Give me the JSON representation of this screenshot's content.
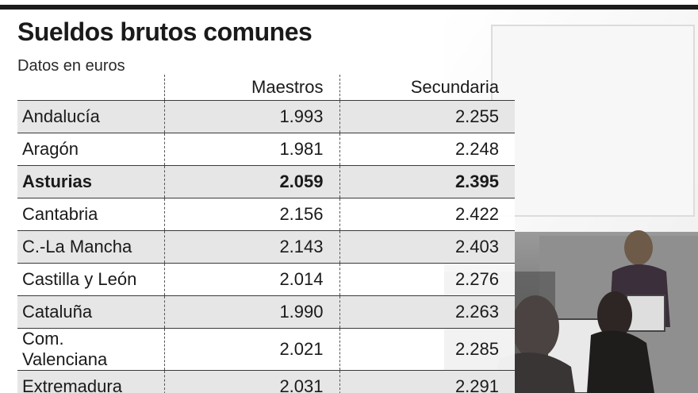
{
  "chart_data": {
    "type": "table",
    "title": "Sueldos brutos comunes",
    "subtitle": "Datos en euros",
    "columns": [
      "",
      "Maestros",
      "Secundaria"
    ],
    "highlight_row": "Asturias",
    "rows": [
      {
        "region": "Andalucía",
        "maestros": "1.993",
        "secundaria": "2.255"
      },
      {
        "region": "Aragón",
        "maestros": "1.981",
        "secundaria": "2.248"
      },
      {
        "region": "Asturias",
        "maestros": "2.059",
        "secundaria": "2.395"
      },
      {
        "region": "Cantabria",
        "maestros": "2.156",
        "secundaria": "2.422"
      },
      {
        "region": "C.-La Mancha",
        "maestros": "2.143",
        "secundaria": "2.403"
      },
      {
        "region": "Castilla y León",
        "maestros": "2.014",
        "secundaria": "2.276"
      },
      {
        "region": "Cataluña",
        "maestros": "1.990",
        "secundaria": "2.263"
      },
      {
        "region": "Com. Valenciana",
        "maestros": "2.021",
        "secundaria": "2.285"
      },
      {
        "region": "Extremadura",
        "maestros": "2.031",
        "secundaria": "2.291"
      }
    ]
  },
  "colors": {
    "rule": "#1c1c1c",
    "row_shade": "#e6e6e6",
    "text": "#1a1a1a"
  },
  "photo": {
    "description_icon": "classroom-photo"
  }
}
